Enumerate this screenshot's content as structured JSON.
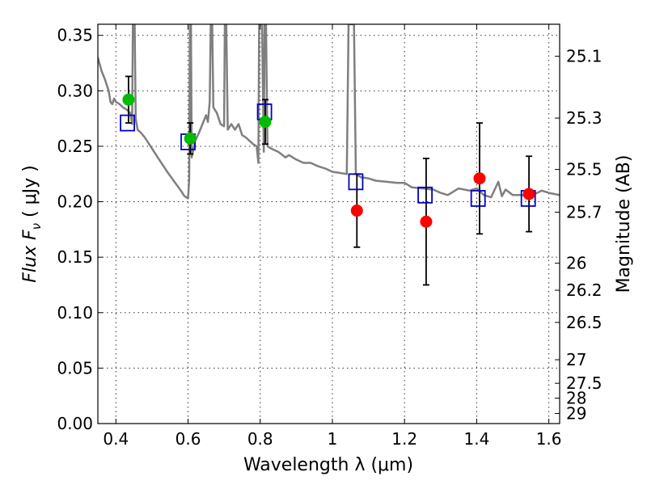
{
  "chart_data": {
    "type": "scatter",
    "xlabel": "Wavelength  λ (μm)",
    "ylabel": "Flux  F",
    "ylabel_sub": "ν",
    "ylabel_unit": "  ( μJy )",
    "y2label": "Magnitude (AB)",
    "xlim": [
      0.35,
      1.63
    ],
    "ylim": [
      0.0,
      0.36
    ],
    "grid": true,
    "x_ticks": [
      0.4,
      0.6,
      0.8,
      1.0,
      1.2,
      1.4,
      1.6
    ],
    "x_tick_labels": [
      "0.4",
      "0.6",
      "0.8",
      "1",
      "1.2",
      "1.4",
      "1.6"
    ],
    "y_ticks": [
      0.0,
      0.05,
      0.1,
      0.15,
      0.2,
      0.25,
      0.3,
      0.35
    ],
    "y_tick_labels": [
      "0.00",
      "0.05",
      "0.10",
      "0.15",
      "0.20",
      "0.25",
      "0.30",
      "0.35"
    ],
    "y2_ticks": [
      25.1,
      25.3,
      25.5,
      25.7,
      26,
      26.2,
      26.5,
      27,
      27.5,
      28,
      29
    ],
    "y2_tick_labels": [
      "25.1",
      "25.3",
      "25.5",
      "25.7",
      "26",
      "26.2",
      "26.5",
      "27",
      "27.5",
      "28",
      "29"
    ],
    "colors": {
      "model": "#7f7f7f",
      "optical": "#00bb00",
      "nir": "#ff0000",
      "model_phot": "#0000cc",
      "errorbar": "#000000"
    },
    "series": [
      {
        "kind": "line",
        "points": [
          [
            0.35,
            0.33
          ],
          [
            0.36,
            0.318
          ],
          [
            0.37,
            0.31
          ],
          [
            0.38,
            0.3
          ],
          [
            0.385,
            0.29
          ],
          [
            0.39,
            0.288
          ],
          [
            0.395,
            0.293
          ],
          [
            0.4,
            0.29
          ],
          [
            0.41,
            0.288
          ],
          [
            0.42,
            0.285
          ],
          [
            0.43,
            0.283
          ],
          [
            0.44,
            0.28
          ],
          [
            0.445,
            0.27
          ],
          [
            0.447,
            0.36
          ],
          [
            0.452,
            0.36
          ],
          [
            0.455,
            0.275
          ],
          [
            0.46,
            0.265
          ],
          [
            0.47,
            0.262
          ],
          [
            0.48,
            0.258
          ],
          [
            0.5,
            0.248
          ],
          [
            0.52,
            0.238
          ],
          [
            0.54,
            0.228
          ],
          [
            0.56,
            0.219
          ],
          [
            0.58,
            0.21
          ],
          [
            0.59,
            0.205
          ],
          [
            0.6,
            0.203
          ],
          [
            0.603,
            0.22
          ],
          [
            0.605,
            0.36
          ],
          [
            0.608,
            0.36
          ],
          [
            0.61,
            0.24
          ],
          [
            0.62,
            0.255
          ],
          [
            0.63,
            0.262
          ],
          [
            0.64,
            0.27
          ],
          [
            0.65,
            0.278
          ],
          [
            0.655,
            0.272
          ],
          [
            0.66,
            0.29
          ],
          [
            0.663,
            0.36
          ],
          [
            0.667,
            0.36
          ],
          [
            0.67,
            0.285
          ],
          [
            0.68,
            0.28
          ],
          [
            0.69,
            0.27
          ],
          [
            0.7,
            0.268
          ],
          [
            0.702,
            0.36
          ],
          [
            0.706,
            0.36
          ],
          [
            0.71,
            0.265
          ],
          [
            0.72,
            0.27
          ],
          [
            0.73,
            0.265
          ],
          [
            0.74,
            0.27
          ],
          [
            0.75,
            0.26
          ],
          [
            0.76,
            0.258
          ],
          [
            0.77,
            0.255
          ],
          [
            0.78,
            0.252
          ],
          [
            0.79,
            0.25
          ],
          [
            0.795,
            0.235
          ],
          [
            0.797,
            0.36
          ],
          [
            0.805,
            0.36
          ],
          [
            0.81,
            0.245
          ],
          [
            0.812,
            0.36
          ],
          [
            0.816,
            0.36
          ],
          [
            0.82,
            0.25
          ],
          [
            0.83,
            0.248
          ],
          [
            0.85,
            0.245
          ],
          [
            0.87,
            0.24
          ],
          [
            0.88,
            0.242
          ],
          [
            0.9,
            0.238
          ],
          [
            0.92,
            0.235
          ],
          [
            0.94,
            0.235
          ],
          [
            0.96,
            0.232
          ],
          [
            0.98,
            0.23
          ],
          [
            1.0,
            0.227
          ],
          [
            1.02,
            0.226
          ],
          [
            1.04,
            0.225
          ],
          [
            1.045,
            0.36
          ],
          [
            1.06,
            0.36
          ],
          [
            1.065,
            0.225
          ],
          [
            1.08,
            0.222
          ],
          [
            1.1,
            0.221
          ],
          [
            1.12,
            0.219
          ],
          [
            1.15,
            0.218
          ],
          [
            1.18,
            0.217
          ],
          [
            1.2,
            0.217
          ],
          [
            1.22,
            0.213
          ],
          [
            1.25,
            0.212
          ],
          [
            1.28,
            0.211
          ],
          [
            1.3,
            0.208
          ],
          [
            1.32,
            0.206
          ],
          [
            1.35,
            0.212
          ],
          [
            1.38,
            0.21
          ],
          [
            1.4,
            0.212
          ],
          [
            1.42,
            0.206
          ],
          [
            1.44,
            0.204
          ],
          [
            1.46,
            0.218
          ],
          [
            1.47,
            0.205
          ],
          [
            1.48,
            0.211
          ],
          [
            1.5,
            0.206
          ],
          [
            1.52,
            0.206
          ],
          [
            1.55,
            0.205
          ],
          [
            1.58,
            0.21
          ],
          [
            1.6,
            0.208
          ],
          [
            1.63,
            0.206
          ]
        ]
      },
      {
        "kind": "points",
        "marker": "circle",
        "points": [
          {
            "x": 0.435,
            "y": 0.292,
            "err": 0.021
          },
          {
            "x": 0.606,
            "y": 0.257,
            "err": 0.014
          },
          {
            "x": 0.814,
            "y": 0.272,
            "err": 0.02
          }
        ]
      },
      {
        "kind": "points",
        "marker": "circle",
        "points": [
          {
            "x": 1.068,
            "y": 0.192,
            "err": 0.033
          },
          {
            "x": 1.26,
            "y": 0.182,
            "err": 0.057
          },
          {
            "x": 1.408,
            "y": 0.221,
            "err": 0.05
          },
          {
            "x": 1.545,
            "y": 0.207,
            "err": 0.034
          }
        ]
      },
      {
        "kind": "points",
        "marker": "square",
        "points": [
          {
            "x": 0.432,
            "y": 0.271
          },
          {
            "x": 0.6,
            "y": 0.254
          },
          {
            "x": 0.812,
            "y": 0.281
          },
          {
            "x": 1.065,
            "y": 0.218
          },
          {
            "x": 1.257,
            "y": 0.206
          },
          {
            "x": 1.404,
            "y": 0.203
          },
          {
            "x": 1.543,
            "y": 0.203
          }
        ]
      }
    ]
  }
}
